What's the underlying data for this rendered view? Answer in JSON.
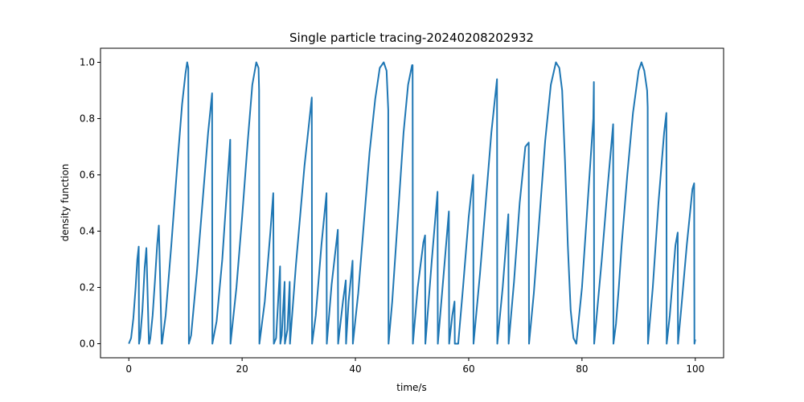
{
  "chart_data": {
    "type": "line",
    "title": "Single particle tracing-20240208202932",
    "xlabel": "time/s",
    "ylabel": "density function",
    "xlim": [
      -5,
      105
    ],
    "ylim": [
      -0.05,
      1.05
    ],
    "xticks": [
      0,
      20,
      40,
      60,
      80,
      100
    ],
    "xtick_labels": [
      "0",
      "20",
      "40",
      "60",
      "80",
      "100"
    ],
    "yticks": [
      0.0,
      0.2,
      0.4,
      0.6,
      0.8,
      1.0
    ],
    "ytick_labels": [
      "0.0",
      "0.2",
      "0.4",
      "0.6",
      "0.8",
      "1.0"
    ],
    "grid": false,
    "series": [
      {
        "color": "#1f77b4",
        "x": [
          0.0,
          0.4,
          0.8,
          1.2,
          1.5,
          1.75,
          1.8,
          2.0,
          2.4,
          2.8,
          3.1,
          3.55,
          3.6,
          3.8,
          4.2,
          4.6,
          5.0,
          5.3,
          5.8,
          5.85,
          6.5,
          7.5,
          8.5,
          9.4,
          10.0,
          10.3,
          10.5,
          10.6,
          11.0,
          12.0,
          13.0,
          14.0,
          14.7,
          14.75,
          15.5,
          16.5,
          17.5,
          17.9,
          17.95,
          19.0,
          20.0,
          21.0,
          21.8,
          22.5,
          22.9,
          23.0,
          23.05,
          24.0,
          25.0,
          25.5,
          25.6,
          26.0,
          26.7,
          26.75,
          27.0,
          27.5,
          27.55,
          28.0,
          28.4,
          28.45,
          29.5,
          31.0,
          32.3,
          32.35,
          33.0,
          34.0,
          34.9,
          34.95,
          35.8,
          36.9,
          36.95,
          37.8,
          38.3,
          38.35,
          38.8,
          39.5,
          39.55,
          40.5,
          41.5,
          42.5,
          43.5,
          44.3,
          45.0,
          45.5,
          45.8,
          45.85,
          46.5,
          47.5,
          48.5,
          49.3,
          50.0,
          50.1,
          50.15,
          51.0,
          52.0,
          52.3,
          52.35,
          53.5,
          54.5,
          54.55,
          55.8,
          56.5,
          56.55,
          57.1,
          57.5,
          57.55,
          58.0,
          58.1,
          58.15,
          59.0,
          60.0,
          60.8,
          60.85,
          62.0,
          63.0,
          64.0,
          65.0,
          65.05,
          66.0,
          67.0,
          67.05,
          68.0,
          69.0,
          70.0,
          70.6,
          70.65,
          71.5,
          72.5,
          73.5,
          74.5,
          75.4,
          76.0,
          76.5,
          77.0,
          77.5,
          78.0,
          78.5,
          79.0,
          80.0,
          81.0,
          82.0,
          82.1,
          82.15,
          83.5,
          84.5,
          85.5,
          85.55,
          86.0,
          86.5,
          87.0,
          88.0,
          89.0,
          90.0,
          90.5,
          91.0,
          91.5,
          91.6,
          91.65,
          92.5,
          93.5,
          94.5,
          94.9,
          94.95,
          95.5,
          96.5,
          96.9,
          96.95,
          97.5,
          98.5,
          99.5,
          99.8,
          99.85,
          100.0
        ],
        "y": [
          0.0,
          0.02,
          0.09,
          0.2,
          0.3,
          0.345,
          0.0,
          0.02,
          0.12,
          0.27,
          0.34,
          0.0,
          0.0,
          0.02,
          0.1,
          0.22,
          0.35,
          0.42,
          0.0,
          0.0,
          0.1,
          0.35,
          0.62,
          0.85,
          0.96,
          1.0,
          0.98,
          0.0,
          0.03,
          0.25,
          0.5,
          0.75,
          0.89,
          0.0,
          0.08,
          0.3,
          0.6,
          0.725,
          0.0,
          0.2,
          0.45,
          0.72,
          0.92,
          1.0,
          0.98,
          0.9,
          0.0,
          0.15,
          0.4,
          0.535,
          0.0,
          0.02,
          0.275,
          0.0,
          0.03,
          0.22,
          0.0,
          0.05,
          0.22,
          0.0,
          0.28,
          0.63,
          0.875,
          0.0,
          0.1,
          0.35,
          0.535,
          0.0,
          0.21,
          0.405,
          0.0,
          0.15,
          0.225,
          0.0,
          0.15,
          0.295,
          0.0,
          0.18,
          0.43,
          0.68,
          0.87,
          0.98,
          1.0,
          0.97,
          0.83,
          0.0,
          0.15,
          0.45,
          0.75,
          0.92,
          0.99,
          0.99,
          0.0,
          0.2,
          0.36,
          0.385,
          0.0,
          0.3,
          0.54,
          0.0,
          0.3,
          0.47,
          0.0,
          0.1,
          0.15,
          0.0,
          0.0,
          0.0,
          0.0,
          0.2,
          0.45,
          0.6,
          0.0,
          0.25,
          0.5,
          0.75,
          0.94,
          0.0,
          0.2,
          0.46,
          0.0,
          0.22,
          0.5,
          0.7,
          0.715,
          0.0,
          0.18,
          0.45,
          0.72,
          0.92,
          1.0,
          0.98,
          0.9,
          0.65,
          0.35,
          0.12,
          0.02,
          0.0,
          0.2,
          0.5,
          0.8,
          0.93,
          0.0,
          0.3,
          0.55,
          0.78,
          0.0,
          0.07,
          0.2,
          0.35,
          0.6,
          0.82,
          0.97,
          1.0,
          0.97,
          0.9,
          0.84,
          0.0,
          0.2,
          0.5,
          0.75,
          0.82,
          0.0,
          0.1,
          0.35,
          0.395,
          0.0,
          0.12,
          0.35,
          0.55,
          0.57,
          0.0,
          0.015
        ]
      }
    ]
  }
}
